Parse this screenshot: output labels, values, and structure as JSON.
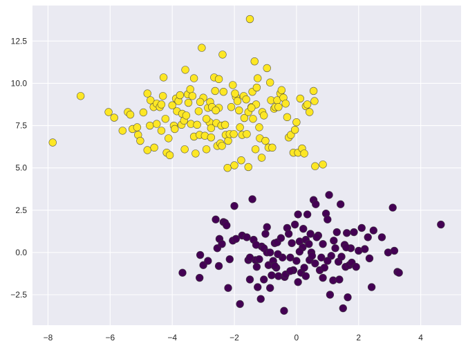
{
  "chart_data": {
    "type": "scatter",
    "title": "",
    "xlabel": "",
    "ylabel": "",
    "xlim": [
      -8.5,
      5.3
    ],
    "ylim": [
      -4.3,
      14.6
    ],
    "grid": true,
    "legend": null,
    "xticks": [
      -8,
      -6,
      -4,
      -2,
      0,
      2,
      4
    ],
    "xtick_labels": [
      "−8",
      "−6",
      "−4",
      "−2",
      "0",
      "2",
      "4"
    ],
    "yticks": [
      -2.5,
      0.0,
      2.5,
      5.0,
      7.5,
      10.0,
      12.5
    ],
    "ytick_labels": [
      "−2.5",
      "0.0",
      "2.5",
      "5.0",
      "7.5",
      "10.0",
      "12.5"
    ],
    "colors": {
      "background": "#eaeaf2",
      "grid": "#ffffff",
      "cluster_0": "#fde725",
      "cluster_1": "#440154",
      "edge": "#3a3a3a"
    },
    "series": [
      {
        "name": "cluster_0",
        "color": "#fde725",
        "points": [
          [
            -7.85,
            6.5
          ],
          [
            -6.95,
            9.25
          ],
          [
            -6.05,
            8.3
          ],
          [
            -5.87,
            7.97
          ],
          [
            -5.6,
            7.2
          ],
          [
            -5.43,
            8.3
          ],
          [
            -5.35,
            8.15
          ],
          [
            -5.28,
            7.3
          ],
          [
            -5.13,
            7.4
          ],
          [
            -5.1,
            6.95
          ],
          [
            -5.03,
            6.6
          ],
          [
            -4.93,
            8.28
          ],
          [
            -4.8,
            9.4
          ],
          [
            -4.8,
            6.05
          ],
          [
            -4.72,
            7.5
          ],
          [
            -4.7,
            9.0
          ],
          [
            -4.6,
            8.6
          ],
          [
            -4.58,
            6.2
          ],
          [
            -4.5,
            8.8
          ],
          [
            -4.4,
            8.6
          ],
          [
            -4.35,
            8.75
          ],
          [
            -4.35,
            7.2
          ],
          [
            -4.3,
            9.25
          ],
          [
            -4.28,
            10.35
          ],
          [
            -4.22,
            7.9
          ],
          [
            -4.18,
            5.9
          ],
          [
            -4.12,
            6.75
          ],
          [
            -4.08,
            5.75
          ],
          [
            -4.0,
            8.7
          ],
          [
            -3.95,
            7.5
          ],
          [
            -3.92,
            7.3
          ],
          [
            -3.88,
            9.1
          ],
          [
            -3.85,
            8.35
          ],
          [
            -3.8,
            8.95
          ],
          [
            -3.75,
            9.3
          ],
          [
            -3.7,
            7.55
          ],
          [
            -3.68,
            8.2
          ],
          [
            -3.62,
            7.8
          ],
          [
            -3.58,
            10.8
          ],
          [
            -3.55,
            8.1
          ],
          [
            -3.5,
            9.35
          ],
          [
            -3.48,
            8.85
          ],
          [
            -3.42,
            9.65
          ],
          [
            -3.4,
            7.6
          ],
          [
            -3.35,
            9.25
          ],
          [
            -3.3,
            6.85
          ],
          [
            -3.25,
            5.85
          ],
          [
            -3.2,
            7.55
          ],
          [
            -3.15,
            8.35
          ],
          [
            -3.12,
            6.95
          ],
          [
            -3.05,
            12.1
          ],
          [
            -3.0,
            9.15
          ],
          [
            -2.95,
            6.9
          ],
          [
            -2.9,
            6.1
          ],
          [
            -2.85,
            8.55
          ],
          [
            -2.8,
            7.7
          ],
          [
            -2.78,
            8.9
          ],
          [
            -2.75,
            7.35
          ],
          [
            -2.72,
            8.6
          ],
          [
            -2.65,
            10.35
          ],
          [
            -2.62,
            9.55
          ],
          [
            -2.58,
            7.65
          ],
          [
            -2.55,
            6.3
          ],
          [
            -2.5,
            10.25
          ],
          [
            -2.5,
            8.55
          ],
          [
            -2.45,
            6.45
          ],
          [
            -2.42,
            7.5
          ],
          [
            -2.4,
            6.3
          ],
          [
            -2.38,
            11.7
          ],
          [
            -2.35,
            9.5
          ],
          [
            -2.3,
            7.55
          ],
          [
            -2.28,
            6.95
          ],
          [
            -2.22,
            5.0
          ],
          [
            -2.2,
            6.6
          ],
          [
            -2.15,
            7.0
          ],
          [
            -2.1,
            8.6
          ],
          [
            -2.05,
            9.9
          ],
          [
            -2.02,
            7.0
          ],
          [
            -2.0,
            5.15
          ],
          [
            -1.95,
            9.2
          ],
          [
            -1.9,
            8.95
          ],
          [
            -1.85,
            8.4
          ],
          [
            -1.82,
            7.4
          ],
          [
            -1.78,
            5.45
          ],
          [
            -1.75,
            6.95
          ],
          [
            -1.7,
            9.25
          ],
          [
            -1.68,
            7.95
          ],
          [
            -1.62,
            9.05
          ],
          [
            -1.6,
            7.0
          ],
          [
            -1.55,
            8.3
          ],
          [
            -1.55,
            5.05
          ],
          [
            -1.5,
            13.8
          ],
          [
            -1.45,
            8.6
          ],
          [
            -1.42,
            9.5
          ],
          [
            -1.4,
            7.9
          ],
          [
            -1.35,
            11.3
          ],
          [
            -1.32,
            6.1
          ],
          [
            -1.3,
            8.75
          ],
          [
            -1.28,
            9.75
          ],
          [
            -1.25,
            10.3
          ],
          [
            -1.2,
            7.4
          ],
          [
            -1.18,
            6.75
          ],
          [
            -1.12,
            5.6
          ],
          [
            -1.1,
            8.3
          ],
          [
            -1.05,
            8.1
          ],
          [
            -1.0,
            6.6
          ],
          [
            -0.95,
            10.9
          ],
          [
            -0.9,
            6.2
          ],
          [
            -0.85,
            10.05
          ],
          [
            -0.82,
            9.0
          ],
          [
            -0.78,
            6.2
          ],
          [
            -0.72,
            8.5
          ],
          [
            -0.68,
            8.6
          ],
          [
            -0.62,
            9.0
          ],
          [
            -0.58,
            8.6
          ],
          [
            -0.52,
            9.4
          ],
          [
            -0.48,
            9.6
          ],
          [
            -0.42,
            9.15
          ],
          [
            -0.35,
            8.8
          ],
          [
            -0.3,
            8.0
          ],
          [
            -0.25,
            6.8
          ],
          [
            -0.18,
            6.95
          ],
          [
            -0.1,
            5.9
          ],
          [
            -0.05,
            7.25
          ],
          [
            0.0,
            7.7
          ],
          [
            0.05,
            5.9
          ],
          [
            0.12,
            9.1
          ],
          [
            0.18,
            6.15
          ],
          [
            0.25,
            5.85
          ],
          [
            0.3,
            8.65
          ],
          [
            0.35,
            8.75
          ],
          [
            0.42,
            8.3
          ],
          [
            0.55,
            9.55
          ],
          [
            0.58,
            8.95
          ],
          [
            0.6,
            5.1
          ],
          [
            0.85,
            5.2
          ],
          [
            -2.6,
            8.4
          ],
          [
            -3.1,
            8.9
          ],
          [
            -1.98,
            9.4
          ],
          [
            -2.9,
            7.9
          ],
          [
            -3.6,
            6.1
          ],
          [
            -4.5,
            7.6
          ],
          [
            -1.45,
            8.55
          ],
          [
            -2.75,
            6.8
          ],
          [
            -3.3,
            10.3
          ]
        ]
      },
      {
        "name": "cluster_1",
        "color": "#440154",
        "points": [
          [
            -3.67,
            -1.2
          ],
          [
            -3.12,
            -1.5
          ],
          [
            -3.1,
            -0.15
          ],
          [
            -3.0,
            -0.75
          ],
          [
            -2.85,
            -0.5
          ],
          [
            -2.6,
            1.95
          ],
          [
            -2.55,
            0.25
          ],
          [
            -2.5,
            -0.8
          ],
          [
            -2.48,
            0.8
          ],
          [
            -2.4,
            0.5
          ],
          [
            -2.35,
            1.8
          ],
          [
            -2.3,
            1.75
          ],
          [
            -2.25,
            1.6
          ],
          [
            -2.2,
            -2.1
          ],
          [
            -2.05,
            0.7
          ],
          [
            -2.0,
            2.75
          ],
          [
            -1.95,
            0.8
          ],
          [
            -1.82,
            -3.05
          ],
          [
            -1.75,
            1.0
          ],
          [
            -1.6,
            0.9
          ],
          [
            -1.55,
            -0.45
          ],
          [
            -1.5,
            -1.6
          ],
          [
            -1.42,
            3.15
          ],
          [
            -1.38,
            0.75
          ],
          [
            -1.32,
            -0.45
          ],
          [
            -1.28,
            -0.85
          ],
          [
            -1.25,
            -2.05
          ],
          [
            -1.2,
            -0.4
          ],
          [
            -1.15,
            -2.75
          ],
          [
            -1.12,
            0.35
          ],
          [
            -1.05,
            0.25
          ],
          [
            -1.0,
            1.1
          ],
          [
            -0.95,
            0.0
          ],
          [
            -0.9,
            -0.75
          ],
          [
            -0.85,
            -2.1
          ],
          [
            -0.8,
            -1.35
          ],
          [
            -0.75,
            -0.5
          ],
          [
            -0.7,
            0.55
          ],
          [
            -0.65,
            -0.9
          ],
          [
            -0.62,
            0.6
          ],
          [
            -0.58,
            -1.4
          ],
          [
            -0.5,
            0.85
          ],
          [
            -0.45,
            -0.3
          ],
          [
            -0.4,
            -3.45
          ],
          [
            -0.38,
            -1.45
          ],
          [
            -0.35,
            -1.3
          ],
          [
            -0.3,
            1.45
          ],
          [
            -0.25,
            1.1
          ],
          [
            -0.2,
            -0.3
          ],
          [
            -0.15,
            0.55
          ],
          [
            -0.1,
            -1.05
          ],
          [
            -0.05,
            1.65
          ],
          [
            0.0,
            -0.5
          ],
          [
            0.05,
            2.25
          ],
          [
            0.1,
            0.65
          ],
          [
            0.15,
            -1.2
          ],
          [
            0.2,
            0.3
          ],
          [
            0.22,
            1.4
          ],
          [
            0.25,
            -0.9
          ],
          [
            0.3,
            -1.4
          ],
          [
            0.35,
            2.25
          ],
          [
            0.42,
            -0.45
          ],
          [
            0.45,
            1.1
          ],
          [
            0.48,
            0.0
          ],
          [
            0.55,
            3.1
          ],
          [
            0.6,
            -0.65
          ],
          [
            0.62,
            2.85
          ],
          [
            0.7,
            1.0
          ],
          [
            0.75,
            -1.05
          ],
          [
            0.8,
            -0.3
          ],
          [
            0.85,
            0.5
          ],
          [
            0.9,
            -0.9
          ],
          [
            0.95,
            2.3
          ],
          [
            1.0,
            1.95
          ],
          [
            1.05,
            3.4
          ],
          [
            1.08,
            -2.5
          ],
          [
            1.12,
            -0.2
          ],
          [
            1.18,
            -1.65
          ],
          [
            1.25,
            0.25
          ],
          [
            1.3,
            1.2
          ],
          [
            1.35,
            -0.55
          ],
          [
            1.38,
            -1.6
          ],
          [
            1.42,
            2.85
          ],
          [
            1.45,
            -0.25
          ],
          [
            1.5,
            -3.3
          ],
          [
            1.55,
            0.45
          ],
          [
            1.58,
            -0.85
          ],
          [
            1.62,
            1.15
          ],
          [
            1.65,
            -2.65
          ],
          [
            1.7,
            -0.75
          ],
          [
            1.75,
            0.25
          ],
          [
            1.78,
            -0.6
          ],
          [
            1.85,
            1.2
          ],
          [
            1.92,
            -0.85
          ],
          [
            2.0,
            0.1
          ],
          [
            2.1,
            1.45
          ],
          [
            2.2,
            0.2
          ],
          [
            2.3,
            0.9
          ],
          [
            2.35,
            -0.35
          ],
          [
            2.42,
            -2.05
          ],
          [
            2.48,
            1.3
          ],
          [
            2.75,
            0.9
          ],
          [
            2.95,
            0.0
          ],
          [
            3.1,
            2.65
          ],
          [
            3.15,
            0.1
          ],
          [
            3.25,
            -1.15
          ],
          [
            3.3,
            -1.2
          ],
          [
            4.65,
            1.65
          ],
          [
            -0.85,
            0.0
          ],
          [
            -1.5,
            -0.3
          ],
          [
            0.1,
            0.05
          ],
          [
            -0.6,
            -0.1
          ],
          [
            0.3,
            0.75
          ],
          [
            -1.05,
            -1.6
          ],
          [
            0.65,
            0.9
          ],
          [
            1.2,
            0.7
          ],
          [
            -0.2,
            -1.1
          ],
          [
            0.5,
            -0.2
          ],
          [
            -2.15,
            -0.4
          ],
          [
            0.4,
            0.5
          ],
          [
            -0.7,
            -0.8
          ],
          [
            1.0,
            -0.5
          ],
          [
            -1.3,
            0.45
          ],
          [
            0.85,
            -1.5
          ],
          [
            -0.95,
            1.5
          ],
          [
            0.05,
            -1.75
          ],
          [
            1.6,
            0.3
          ]
        ]
      }
    ]
  }
}
